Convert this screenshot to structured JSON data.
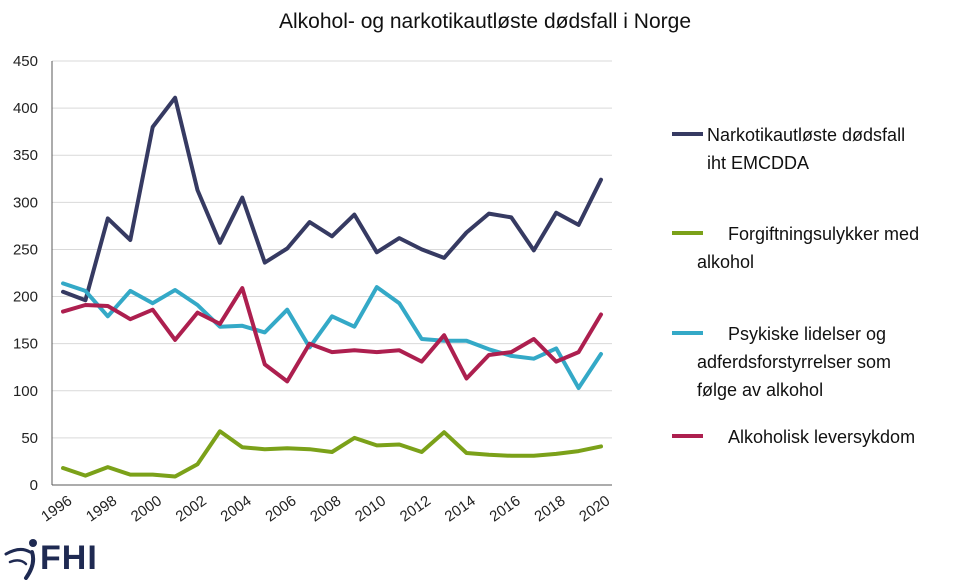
{
  "title": "Alkohol- og narkotikautløste dødsfall i Norge",
  "logo_text": "FHI",
  "colors": {
    "narkotika": "#363a62",
    "forgiftning": "#7ba119",
    "psykiske": "#34a9c7",
    "lever": "#ad1f4f",
    "grid": "#d9d9d9",
    "axis": "#595959"
  },
  "chart_data": {
    "type": "line",
    "title": "Alkohol- og narkotikautløste dødsfall i Norge",
    "xlabel": "",
    "ylabel": "",
    "ylim": [
      0,
      450
    ],
    "yticks": [
      0,
      50,
      100,
      150,
      200,
      250,
      300,
      350,
      400,
      450
    ],
    "x": [
      1996,
      1997,
      1998,
      1999,
      2000,
      2001,
      2002,
      2003,
      2004,
      2005,
      2006,
      2007,
      2008,
      2009,
      2010,
      2011,
      2012,
      2013,
      2014,
      2015,
      2016,
      2017,
      2018,
      2019,
      2020
    ],
    "xtick_labels": [
      "1996",
      "1998",
      "2000",
      "2002",
      "2004",
      "2006",
      "2008",
      "2010",
      "2012",
      "2014",
      "2016",
      "2018",
      "2020"
    ],
    "grid": true,
    "legend_position": "right",
    "series": [
      {
        "key": "narkotika",
        "name_lines": [
          "Narkotikautløste dødsfall",
          "iht EMCDDA"
        ],
        "values": [
          205,
          196,
          283,
          260,
          380,
          411,
          313,
          257,
          305,
          236,
          251,
          279,
          264,
          287,
          247,
          262,
          250,
          241,
          268,
          288,
          284,
          249,
          289,
          276,
          324
        ]
      },
      {
        "key": "forgiftning",
        "name_lines": [
          "Forgiftningsulykker med",
          "alkohol"
        ],
        "values": [
          18,
          10,
          19,
          11,
          11,
          9,
          22,
          57,
          40,
          38,
          39,
          38,
          35,
          50,
          42,
          43,
          35,
          56,
          34,
          32,
          31,
          31,
          33,
          36,
          41
        ]
      },
      {
        "key": "psykiske",
        "name_lines": [
          "Psykiske lidelser og",
          "adferdsforstyrrelser som",
          "følge av alkohol"
        ],
        "values": [
          214,
          206,
          179,
          206,
          193,
          207,
          191,
          168,
          169,
          162,
          186,
          146,
          179,
          168,
          210,
          193,
          155,
          153,
          153,
          144,
          137,
          134,
          145,
          103,
          139
        ]
      },
      {
        "key": "lever",
        "name_lines": [
          "Alkoholisk leversykdom"
        ],
        "values": [
          184,
          191,
          190,
          176,
          186,
          154,
          183,
          171,
          209,
          128,
          110,
          150,
          141,
          143,
          141,
          143,
          131,
          159,
          113,
          138,
          141,
          155,
          131,
          141,
          181
        ]
      }
    ]
  }
}
